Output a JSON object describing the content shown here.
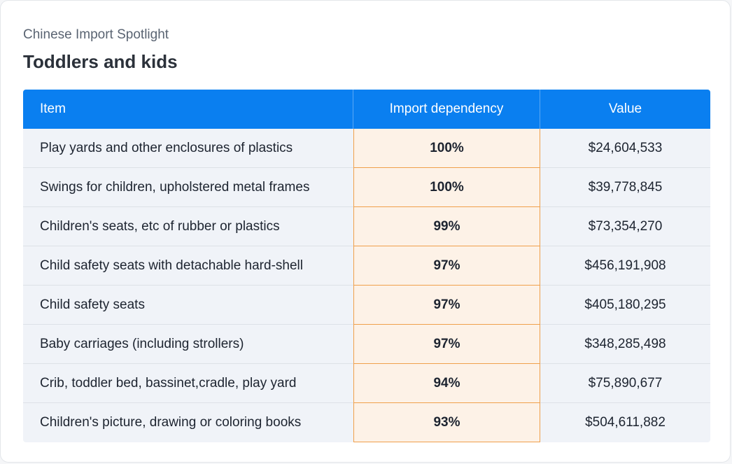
{
  "header": {
    "subtitle": "Chinese Import Spotlight",
    "title": "Toddlers and kids"
  },
  "chart_data": {
    "type": "table",
    "columns": [
      "Item",
      "Import dependency",
      "Value"
    ],
    "rows": [
      {
        "item": "Play yards and other enclosures of plastics",
        "dependency": "100%",
        "value": "$24,604,533"
      },
      {
        "item": "Swings for children, upholstered metal frames",
        "dependency": "100%",
        "value": "$39,778,845"
      },
      {
        "item": "Children's seats, etc of rubber or plastics",
        "dependency": "99%",
        "value": "$73,354,270"
      },
      {
        "item": "Child safety seats with detachable hard-shell",
        "dependency": "97%",
        "value": "$456,191,908"
      },
      {
        "item": "Child safety seats",
        "dependency": "97%",
        "value": "$405,180,295"
      },
      {
        "item": "Baby carriages (including strollers)",
        "dependency": "97%",
        "value": "$348,285,498"
      },
      {
        "item": "Crib, toddler bed, bassinet,cradle, play yard",
        "dependency": "94%",
        "value": "$75,890,677"
      },
      {
        "item": "Children's picture, drawing or coloring books",
        "dependency": "93%",
        "value": "$504,611,882"
      }
    ]
  },
  "colors": {
    "header_bg": "#0a7ff0",
    "highlight_bg": "#fdf2e7",
    "highlight_border": "#f0a04b",
    "row_bg": "#f0f3f8"
  }
}
